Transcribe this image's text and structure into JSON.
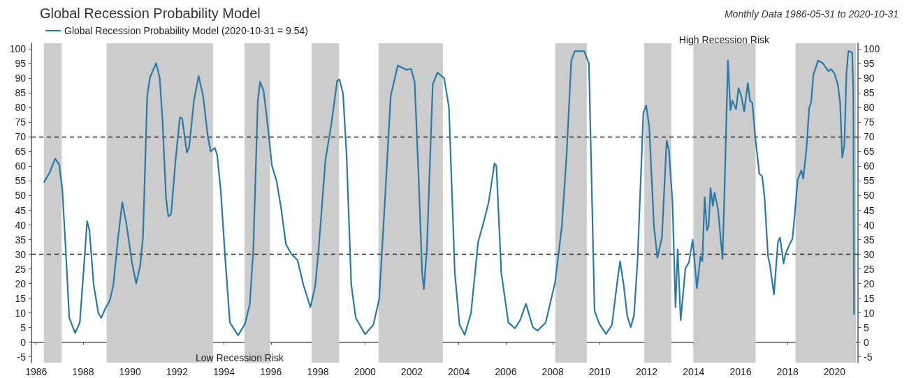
{
  "chart_data": {
    "type": "line",
    "title": "Global Recession Probability Model",
    "subtitle": "Monthly Data 1986-05-31 to 2020-10-31",
    "annotations": [
      "High Recession Risk",
      "Low Recession Risk"
    ],
    "legend": "top left",
    "grid": false,
    "marker": "none",
    "line_style": "solid",
    "xlim": [
      1985.8,
      2021
    ],
    "xticks": [
      1986,
      1988,
      1990,
      1992,
      1994,
      1996,
      1998,
      2000,
      2002,
      2004,
      2006,
      2008,
      2010,
      2012,
      2014,
      2016,
      2018,
      2020
    ],
    "ylim": [
      -7,
      102
    ],
    "yticks": [
      -5,
      0,
      5,
      10,
      15,
      20,
      25,
      30,
      35,
      40,
      45,
      50,
      55,
      60,
      65,
      70,
      75,
      80,
      85,
      90,
      95,
      100
    ],
    "y2lim": [
      -7,
      102
    ],
    "y2ticks": [
      -5,
      0,
      5,
      10,
      15,
      20,
      25,
      30,
      35,
      40,
      45,
      50,
      55,
      60,
      65,
      70,
      75,
      80,
      85,
      90,
      95,
      100
    ],
    "ref_lines": [
      {
        "axis": "y",
        "value": 30,
        "color": "#222222",
        "line_style": "dashed"
      },
      {
        "axis": "y",
        "value": 70,
        "color": "#222222",
        "line_style": "dashed"
      }
    ],
    "bands": [
      {
        "axis": "x",
        "from": 1986.33,
        "to": 1987.09,
        "color": "#cccccc"
      },
      {
        "axis": "x",
        "from": 1989.0,
        "to": 1993.53,
        "color": "#cccccc"
      },
      {
        "axis": "x",
        "from": 1994.87,
        "to": 1995.96,
        "color": "#cccccc"
      },
      {
        "axis": "x",
        "from": 1997.73,
        "to": 1998.9,
        "color": "#cccccc"
      },
      {
        "axis": "x",
        "from": 2000.58,
        "to": 2003.32,
        "color": "#cccccc"
      },
      {
        "axis": "x",
        "from": 2008.11,
        "to": 2009.45,
        "color": "#cccccc"
      },
      {
        "axis": "x",
        "from": 2011.9,
        "to": 2013.05,
        "color": "#cccccc"
      },
      {
        "axis": "x",
        "from": 2013.99,
        "to": 2016.64,
        "color": "#cccccc"
      },
      {
        "axis": "x",
        "from": 2018.34,
        "to": 2020.92,
        "color": "#cccccc"
      }
    ],
    "series": [
      {
        "name": "Global Recession Probability Model (2020-10-31 = 9.54)",
        "color": "#2a7aa8",
        "x": [
          1986.34,
          1986.57,
          1986.81,
          1986.98,
          1987.11,
          1987.26,
          1987.41,
          1987.66,
          1987.86,
          1988.05,
          1988.17,
          1988.27,
          1988.45,
          1988.65,
          1988.77,
          1988.95,
          1989.14,
          1989.29,
          1989.49,
          1989.67,
          1989.84,
          1990.09,
          1990.26,
          1990.43,
          1990.55,
          1990.73,
          1990.85,
          1991.11,
          1991.26,
          1991.38,
          1991.53,
          1991.63,
          1991.75,
          1991.93,
          1992.12,
          1992.22,
          1992.42,
          1992.52,
          1992.72,
          1992.92,
          1993.11,
          1993.31,
          1993.43,
          1993.61,
          1993.71,
          1993.86,
          1994.06,
          1994.25,
          1994.6,
          1994.9,
          1995.1,
          1995.25,
          1995.44,
          1995.54,
          1995.69,
          1995.89,
          1996.04,
          1996.24,
          1996.44,
          1996.64,
          1996.88,
          1997.13,
          1997.38,
          1997.68,
          1997.88,
          1998.03,
          1998.32,
          1998.57,
          1998.82,
          1998.92,
          1999.07,
          1999.22,
          1999.42,
          1999.61,
          2000.01,
          2000.36,
          2000.61,
          2000.85,
          2001.1,
          2001.4,
          2001.75,
          2001.97,
          2002.12,
          2002.29,
          2002.44,
          2002.51,
          2002.64,
          2002.89,
          2003.09,
          2003.38,
          2003.58,
          2003.83,
          2004.03,
          2004.25,
          2004.52,
          2004.82,
          2005.07,
          2005.27,
          2005.52,
          2005.6,
          2005.81,
          2006.11,
          2006.39,
          2006.61,
          2006.86,
          2007.15,
          2007.35,
          2007.7,
          2008.1,
          2008.39,
          2008.59,
          2008.79,
          2008.94,
          2009.34,
          2009.54,
          2009.63,
          2009.78,
          2009.98,
          2010.27,
          2010.52,
          2010.77,
          2010.87,
          2011.02,
          2011.17,
          2011.32,
          2011.46,
          2011.61,
          2011.86,
          2011.98,
          2012.11,
          2012.31,
          2012.46,
          2012.65,
          2012.85,
          2012.95,
          2013.1,
          2013.23,
          2013.32,
          2013.45,
          2013.65,
          2013.8,
          2013.96,
          2014.14,
          2014.29,
          2014.37,
          2014.47,
          2014.57,
          2014.64,
          2014.72,
          2014.82,
          2014.89,
          2015.04,
          2015.23,
          2015.33,
          2015.46,
          2015.57,
          2015.65,
          2015.81,
          2015.91,
          2016.03,
          2016.15,
          2016.31,
          2016.4,
          2016.5,
          2016.62,
          2016.8,
          2016.92,
          2017.02,
          2017.17,
          2017.24,
          2017.42,
          2017.59,
          2017.68,
          2017.83,
          2017.91,
          2018.06,
          2018.21,
          2018.31,
          2018.43,
          2018.59,
          2018.67,
          2018.81,
          2018.92,
          2019.0,
          2019.1,
          2019.3,
          2019.5,
          2019.75,
          2019.85,
          2020.0,
          2020.14,
          2020.24,
          2020.33,
          2020.42,
          2020.51,
          2020.59,
          2020.75,
          2020.8,
          2020.83
        ],
        "values": [
          54.6,
          57.8,
          62.6,
          60.6,
          52.6,
          31.6,
          8.3,
          3.1,
          6.7,
          27.6,
          41.3,
          38.1,
          19.6,
          9.9,
          8.3,
          11.5,
          14.3,
          19.6,
          35.7,
          47.7,
          40.5,
          26.8,
          20.0,
          26.0,
          35.7,
          84.0,
          90.4,
          95.2,
          90.4,
          75.9,
          49.4,
          42.9,
          43.7,
          61.4,
          76.7,
          76.3,
          64.7,
          66.7,
          82.4,
          90.8,
          84.0,
          70.3,
          65.1,
          66.3,
          63.8,
          51.8,
          27.6,
          6.7,
          2.3,
          6.3,
          13.1,
          31.6,
          82.4,
          88.8,
          85.6,
          71.9,
          60.2,
          55.0,
          45.3,
          33.3,
          30.0,
          28.0,
          19.6,
          11.9,
          18.8,
          31.6,
          62.2,
          74.3,
          89.2,
          89.6,
          84.8,
          63.8,
          19.6,
          8.3,
          2.7,
          5.9,
          14.7,
          47.7,
          84.0,
          94.4,
          93.0,
          93.2,
          88.8,
          55.8,
          23.6,
          18.0,
          31.6,
          88.0,
          92.0,
          90.0,
          80.0,
          23.6,
          5.9,
          2.5,
          9.9,
          34.1,
          41.3,
          47.7,
          61.0,
          60.2,
          23.6,
          6.7,
          4.7,
          7.5,
          13.1,
          5.1,
          3.9,
          6.7,
          20.4,
          39.7,
          63.8,
          96.1,
          99.3,
          99.3,
          95.2,
          63.8,
          10.7,
          6.3,
          2.8,
          5.9,
          22.0,
          27.6,
          19.6,
          9.1,
          5.1,
          9.1,
          27.6,
          78.3,
          80.8,
          73.5,
          39.7,
          28.8,
          35.7,
          68.7,
          65.5,
          47.7,
          11.9,
          31.6,
          7.5,
          25.2,
          27.2,
          34.9,
          18.4,
          29.2,
          27.6,
          49.4,
          38.1,
          39.7,
          52.6,
          46.5,
          51.0,
          45.3,
          28.4,
          55.8,
          96.1,
          79.1,
          82.4,
          79.5,
          86.7,
          84.0,
          78.7,
          88.4,
          82.4,
          81.6,
          70.3,
          57.4,
          56.6,
          49.4,
          29.2,
          26.8,
          16.3,
          34.1,
          35.7,
          26.8,
          30.0,
          32.9,
          35.3,
          43.7,
          55.4,
          58.6,
          55.8,
          66.3,
          80.0,
          81.6,
          91.2,
          96.1,
          95.2,
          92.4,
          93.2,
          91.6,
          88.0,
          81.6,
          63.0,
          67.0,
          92.0,
          99.3,
          98.9,
          86.3,
          9.54
        ]
      }
    ]
  }
}
